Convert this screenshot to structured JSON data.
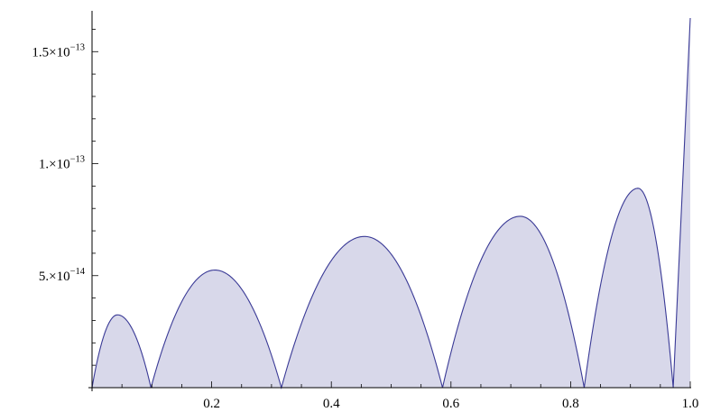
{
  "chart_data": {
    "type": "area",
    "title": "",
    "xlabel": "",
    "ylabel": "",
    "xlim": [
      0,
      1.0
    ],
    "ylim": [
      0,
      1.65e-13
    ],
    "grid": false,
    "legend": "none",
    "colors": {
      "line": "#3a3a96",
      "fill": "#d8d8ea",
      "axis": "#000000"
    },
    "x_ticks": [
      {
        "value": 0.2,
        "label": "0.2"
      },
      {
        "value": 0.4,
        "label": "0.4"
      },
      {
        "value": 0.6,
        "label": "0.6"
      },
      {
        "value": 0.8,
        "label": "0.8"
      },
      {
        "value": 1.0,
        "label": "1.0"
      }
    ],
    "y_ticks": [
      {
        "value": 5e-14,
        "mantissa": "5.",
        "base": "10",
        "exponent": "−14"
      },
      {
        "value": 1e-13,
        "mantissa": "1.",
        "base": "10",
        "exponent": "−13"
      },
      {
        "value": 1.5e-13,
        "mantissa": "1.5",
        "base": "10",
        "exponent": "−13"
      }
    ],
    "x": [
      0.0,
      0.0425,
      0.0985,
      0.2053,
      0.3165,
      0.4554,
      0.5859,
      0.7158,
      0.8227,
      0.9127,
      0.9715,
      1.0
    ],
    "y": [
      0.0,
      3.25e-14,
      0.0,
      5.25e-14,
      0.0,
      6.75e-14,
      0.0,
      7.65e-14,
      0.0,
      8.9e-14,
      0.0,
      1.65e-13
    ],
    "roots": [
      0.0,
      0.0985,
      0.3165,
      0.5859,
      0.8227,
      0.9715
    ],
    "peaks": [
      {
        "x": 0.0425,
        "y": 3.25e-14
      },
      {
        "x": 0.2053,
        "y": 5.25e-14
      },
      {
        "x": 0.4554,
        "y": 6.75e-14
      },
      {
        "x": 0.7158,
        "y": 7.65e-14
      },
      {
        "x": 0.9127,
        "y": 8.9e-14
      }
    ]
  }
}
